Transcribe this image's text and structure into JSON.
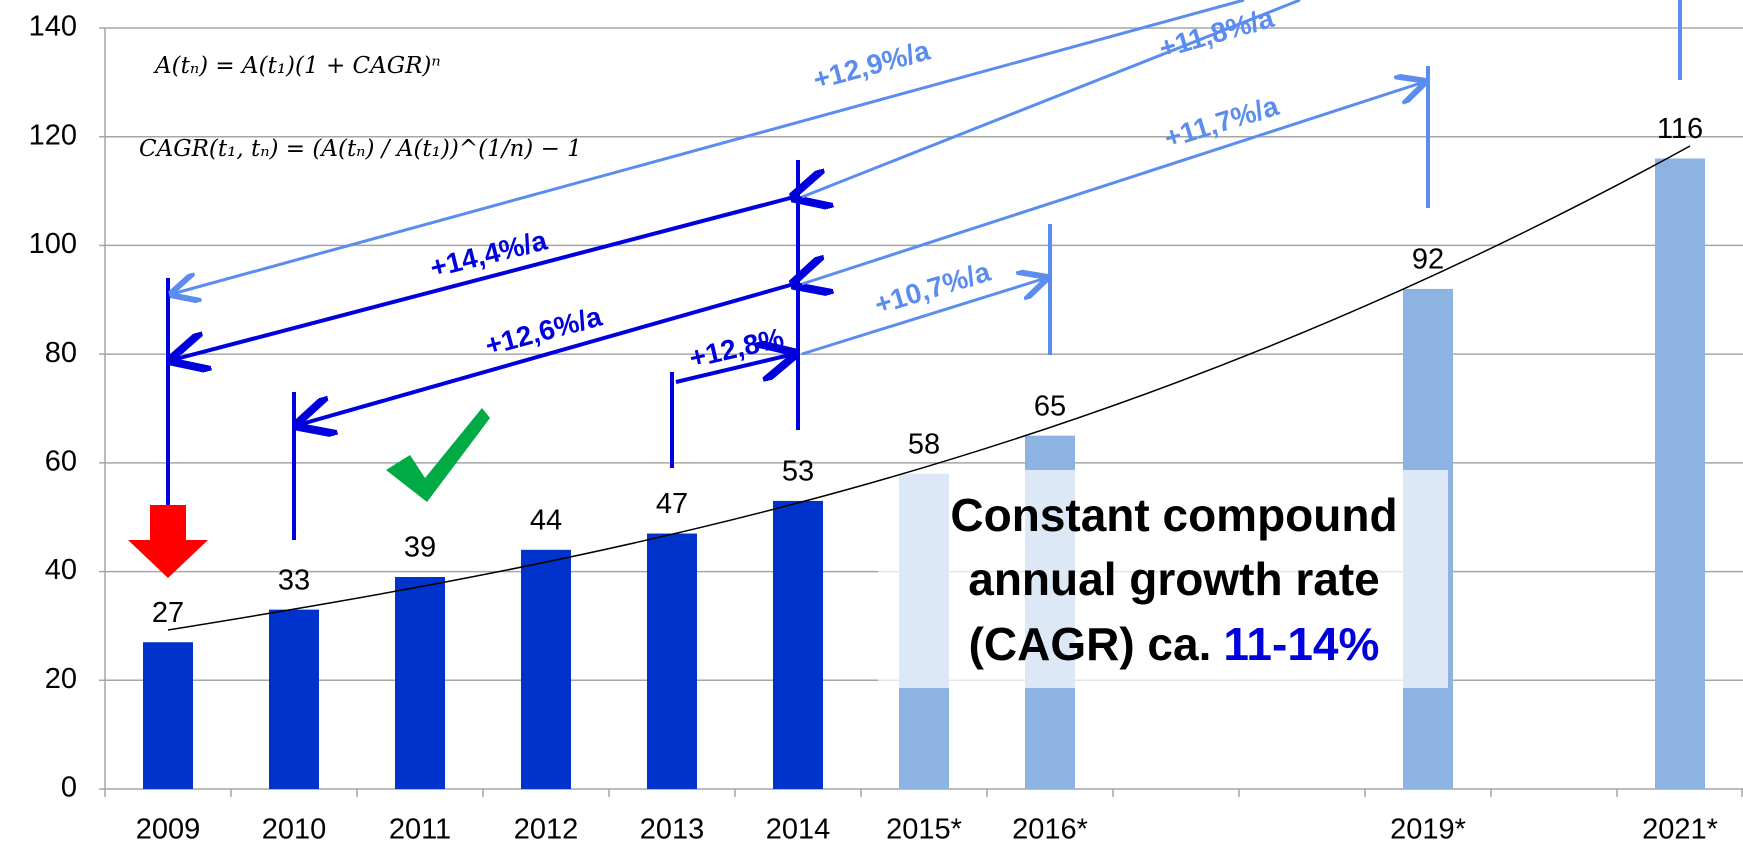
{
  "chart_data": {
    "type": "bar",
    "categories": [
      "2009",
      "2010",
      "2011",
      "2012",
      "2013",
      "2014",
      "2015*",
      "2016*",
      null,
      null,
      "2019*",
      null,
      "2021*"
    ],
    "values": [
      27,
      33,
      39,
      44,
      47,
      53,
      58,
      65,
      null,
      null,
      92,
      null,
      116
    ],
    "colors": [
      "#0033cc",
      "#0033cc",
      "#0033cc",
      "#0033cc",
      "#0033cc",
      "#0033cc",
      "#8db3e2",
      "#8db3e2",
      null,
      null,
      "#8db3e2",
      null,
      "#8db3e2"
    ],
    "ylim": [
      0,
      140
    ],
    "yticks": [
      0,
      20,
      40,
      60,
      80,
      100,
      120,
      140
    ],
    "grid": true,
    "annotations": {
      "formula_1": "A(tₙ) = A(t₁)(1 + CAGR)ⁿ",
      "formula_2": "CAGR(t₁, tₙ) = (A(tₙ) / A(t₁))^(1/n) − 1",
      "growth_labels": [
        "+12,9%/a",
        "+11,8%/a",
        "+11,7%/a",
        "+14,4%/a",
        "+12,6%/a",
        "+12,8%",
        "+10,7%/a"
      ],
      "callout": [
        "Constant compound",
        "annual growth rate",
        "(CAGR) ca."
      ],
      "callout_highlight": "11-14%"
    }
  }
}
